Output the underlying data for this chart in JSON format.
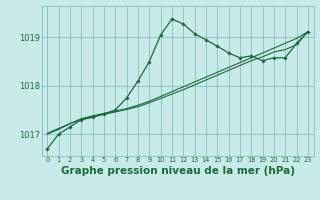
{
  "background_color": "#c8eae8",
  "grid_color": "#7ab8b4",
  "line_color": "#1a6b3a",
  "title": "Graphe pression niveau de la mer (hPa)",
  "title_fontsize": 7.5,
  "ylim": [
    1016.55,
    1019.65
  ],
  "xlim": [
    -0.5,
    23.5
  ],
  "yticks": [
    1017,
    1018,
    1019
  ],
  "xticks": [
    0,
    1,
    2,
    3,
    4,
    5,
    6,
    7,
    8,
    9,
    10,
    11,
    12,
    13,
    14,
    15,
    16,
    17,
    18,
    19,
    20,
    21,
    22,
    23
  ],
  "series_main": [
    1016.7,
    1017.0,
    1017.15,
    1017.3,
    1017.35,
    1017.42,
    1017.5,
    1017.75,
    1018.1,
    1018.5,
    1019.05,
    1019.38,
    1019.28,
    1019.08,
    1018.95,
    1018.82,
    1018.68,
    1018.58,
    1018.62,
    1018.52,
    1018.58,
    1018.58,
    1018.88,
    1019.12
  ],
  "series_line1": [
    1017.0,
    1017.1,
    1017.22,
    1017.32,
    1017.38,
    1017.43,
    1017.48,
    1017.53,
    1017.6,
    1017.68,
    1017.78,
    1017.88,
    1017.98,
    1018.08,
    1018.18,
    1018.28,
    1018.38,
    1018.48,
    1018.58,
    1018.68,
    1018.78,
    1018.88,
    1018.98,
    1019.12
  ],
  "series_line2": [
    1017.02,
    1017.12,
    1017.22,
    1017.3,
    1017.36,
    1017.41,
    1017.46,
    1017.51,
    1017.57,
    1017.65,
    1017.74,
    1017.83,
    1017.92,
    1018.02,
    1018.12,
    1018.22,
    1018.32,
    1018.42,
    1018.52,
    1018.6,
    1018.7,
    1018.75,
    1018.85,
    1019.12
  ]
}
